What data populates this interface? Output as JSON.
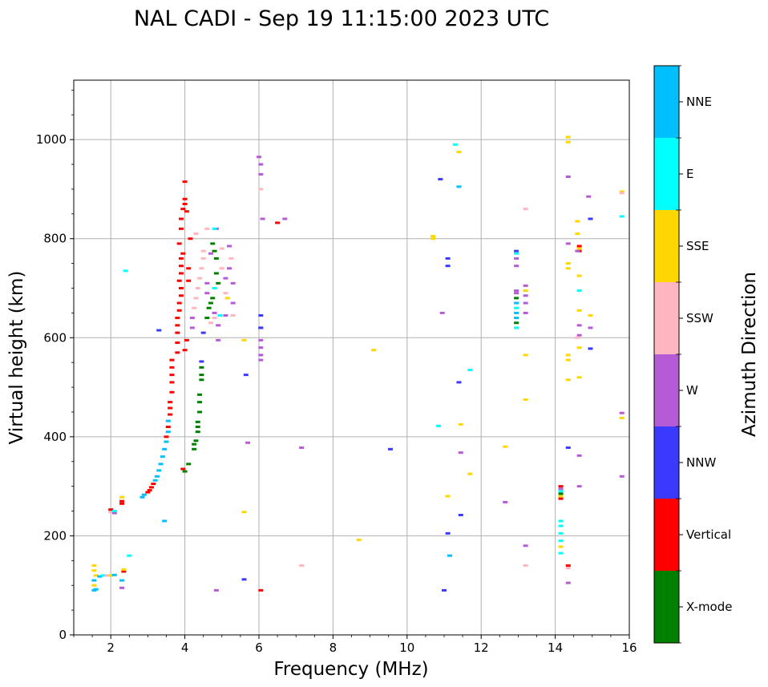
{
  "chart_data": {
    "type": "scatter",
    "title": "NAL CADI - Sep 19 11:15:00 2023 UTC",
    "xlabel": "Frequency (MHz)",
    "ylabel": "Virtual height (km)",
    "xlim": [
      1,
      16
    ],
    "ylim": [
      0,
      1120
    ],
    "xticks": [
      2,
      4,
      6,
      8,
      10,
      12,
      14,
      16
    ],
    "yticks": [
      0,
      200,
      400,
      600,
      800,
      1000
    ],
    "grid": true,
    "colorbar": {
      "title": "Azimuth Direction",
      "categories": [
        {
          "label": "X-mode",
          "color": "#008000"
        },
        {
          "label": "Vertical",
          "color": "#ff0000"
        },
        {
          "label": "NNW",
          "color": "#3a3aff"
        },
        {
          "label": "W",
          "color": "#b65bd6"
        },
        {
          "label": "SSW",
          "color": "#ffb6c1"
        },
        {
          "label": "SSE",
          "color": "#ffd700"
        },
        {
          "label": "E",
          "color": "#00ffff"
        },
        {
          "label": "NNE",
          "color": "#00bfff"
        }
      ]
    },
    "points": [
      [
        1.55,
        90,
        "NNE"
      ],
      [
        1.55,
        100,
        "SSE"
      ],
      [
        1.55,
        110,
        "NNE"
      ],
      [
        1.6,
        120,
        "SSE"
      ],
      [
        1.55,
        130,
        "SSE"
      ],
      [
        1.55,
        140,
        "SSE"
      ],
      [
        1.6,
        92,
        "NNE"
      ],
      [
        1.7,
        118,
        "NNE"
      ],
      [
        1.8,
        120,
        "E"
      ],
      [
        1.9,
        120,
        "SSW"
      ],
      [
        2.0,
        120,
        "SSE"
      ],
      [
        2.1,
        121,
        "NNE"
      ],
      [
        2.3,
        95,
        "W"
      ],
      [
        2.3,
        110,
        "NNE"
      ],
      [
        2.35,
        128,
        "Vertical"
      ],
      [
        2.35,
        132,
        "SSE"
      ],
      [
        2.5,
        160,
        "E"
      ],
      [
        2.0,
        248,
        "SSW"
      ],
      [
        2.0,
        253,
        "Vertical"
      ],
      [
        2.1,
        246,
        "W"
      ],
      [
        2.1,
        250,
        "E"
      ],
      [
        2.3,
        265,
        "Vertical"
      ],
      [
        2.3,
        270,
        "Vertical"
      ],
      [
        2.3,
        278,
        "SSE"
      ],
      [
        2.4,
        735,
        "E"
      ],
      [
        2.85,
        278,
        "NNE"
      ],
      [
        2.9,
        283,
        "NNE"
      ],
      [
        3.0,
        288,
        "Vertical"
      ],
      [
        3.05,
        292,
        "Vertical"
      ],
      [
        3.1,
        298,
        "Vertical"
      ],
      [
        3.15,
        305,
        "Vertical"
      ],
      [
        3.2,
        312,
        "NNE"
      ],
      [
        3.25,
        320,
        "NNE"
      ],
      [
        3.3,
        332,
        "NNE"
      ],
      [
        3.35,
        345,
        "NNE"
      ],
      [
        3.4,
        360,
        "NNE"
      ],
      [
        3.45,
        375,
        "NNE"
      ],
      [
        3.5,
        390,
        "NNE"
      ],
      [
        3.5,
        400,
        "Vertical"
      ],
      [
        3.55,
        410,
        "NNE"
      ],
      [
        3.55,
        420,
        "Vertical"
      ],
      [
        3.55,
        432,
        "NNE"
      ],
      [
        3.6,
        445,
        "Vertical"
      ],
      [
        3.6,
        458,
        "Vertical"
      ],
      [
        3.6,
        470,
        "Vertical"
      ],
      [
        3.65,
        490,
        "Vertical"
      ],
      [
        3.65,
        510,
        "Vertical"
      ],
      [
        3.65,
        525,
        "Vertical"
      ],
      [
        3.65,
        540,
        "Vertical"
      ],
      [
        3.65,
        555,
        "Vertical"
      ],
      [
        3.45,
        230,
        "NNE"
      ],
      [
        3.3,
        615,
        "NNW"
      ],
      [
        3.8,
        570,
        "Vertical"
      ],
      [
        3.8,
        590,
        "Vertical"
      ],
      [
        3.8,
        610,
        "Vertical"
      ],
      [
        3.8,
        625,
        "Vertical"
      ],
      [
        3.8,
        640,
        "Vertical"
      ],
      [
        3.85,
        655,
        "Vertical"
      ],
      [
        3.85,
        670,
        "Vertical"
      ],
      [
        3.9,
        685,
        "Vertical"
      ],
      [
        3.9,
        700,
        "Vertical"
      ],
      [
        3.85,
        715,
        "Vertical"
      ],
      [
        3.9,
        730,
        "Vertical"
      ],
      [
        3.9,
        745,
        "Vertical"
      ],
      [
        3.9,
        760,
        "Vertical"
      ],
      [
        3.95,
        770,
        "Vertical"
      ],
      [
        3.85,
        790,
        "Vertical"
      ],
      [
        3.9,
        820,
        "Vertical"
      ],
      [
        3.9,
        840,
        "Vertical"
      ],
      [
        3.95,
        860,
        "Vertical"
      ],
      [
        4.0,
        870,
        "Vertical"
      ],
      [
        4.0,
        915,
        "Vertical"
      ],
      [
        4.0,
        880,
        "Vertical"
      ],
      [
        4.05,
        855,
        "Vertical"
      ],
      [
        4.1,
        740,
        "Vertical"
      ],
      [
        4.1,
        715,
        "Vertical"
      ],
      [
        4.05,
        595,
        "Vertical"
      ],
      [
        4.0,
        575,
        "Vertical"
      ],
      [
        3.95,
        335,
        "Vertical"
      ],
      [
        4.0,
        330,
        "X-mode"
      ],
      [
        4.1,
        345,
        "X-mode"
      ],
      [
        4.25,
        375,
        "X-mode"
      ],
      [
        4.25,
        385,
        "X-mode"
      ],
      [
        4.3,
        392,
        "X-mode"
      ],
      [
        4.35,
        410,
        "X-mode"
      ],
      [
        4.35,
        420,
        "X-mode"
      ],
      [
        4.35,
        430,
        "X-mode"
      ],
      [
        4.4,
        450,
        "X-mode"
      ],
      [
        4.4,
        470,
        "X-mode"
      ],
      [
        4.4,
        485,
        "X-mode"
      ],
      [
        4.45,
        515,
        "X-mode"
      ],
      [
        4.45,
        525,
        "X-mode"
      ],
      [
        4.45,
        540,
        "X-mode"
      ],
      [
        4.45,
        552,
        "NNW"
      ],
      [
        4.5,
        610,
        "NNW"
      ],
      [
        4.2,
        620,
        "W"
      ],
      [
        4.2,
        640,
        "W"
      ],
      [
        4.25,
        660,
        "SSW"
      ],
      [
        4.3,
        680,
        "SSW"
      ],
      [
        4.35,
        700,
        "SSW"
      ],
      [
        4.4,
        720,
        "SSW"
      ],
      [
        4.45,
        740,
        "SSW"
      ],
      [
        4.5,
        760,
        "SSW"
      ],
      [
        4.5,
        775,
        "SSW"
      ],
      [
        4.6,
        690,
        "W"
      ],
      [
        4.6,
        710,
        "W"
      ],
      [
        4.65,
        660,
        "X-mode"
      ],
      [
        4.7,
        670,
        "X-mode"
      ],
      [
        4.75,
        680,
        "X-mode"
      ],
      [
        4.6,
        640,
        "X-mode"
      ],
      [
        4.8,
        700,
        "X-mode"
      ],
      [
        4.85,
        730,
        "X-mode"
      ],
      [
        4.85,
        760,
        "X-mode"
      ],
      [
        4.8,
        775,
        "X-mode"
      ],
      [
        4.75,
        790,
        "X-mode"
      ],
      [
        4.9,
        710,
        "X-mode"
      ],
      [
        4.8,
        640,
        "SSW"
      ],
      [
        4.8,
        650,
        "W"
      ],
      [
        4.7,
        630,
        "SSW"
      ],
      [
        4.7,
        770,
        "W"
      ],
      [
        4.9,
        595,
        "W"
      ],
      [
        4.85,
        820,
        "W"
      ],
      [
        4.6,
        820,
        "SSW"
      ],
      [
        4.3,
        810,
        "SSW"
      ],
      [
        4.15,
        800,
        "Vertical"
      ],
      [
        5.0,
        780,
        "SSW"
      ],
      [
        5.0,
        740,
        "SSW"
      ],
      [
        5.1,
        720,
        "W"
      ],
      [
        5.2,
        785,
        "W"
      ],
      [
        5.25,
        760,
        "SSW"
      ],
      [
        5.2,
        740,
        "W"
      ],
      [
        5.1,
        690,
        "SSW"
      ],
      [
        5.15,
        680,
        "SSE"
      ],
      [
        5.3,
        710,
        "W"
      ],
      [
        5.3,
        670,
        "W"
      ],
      [
        5.1,
        645,
        "W"
      ],
      [
        5.3,
        645,
        "SSW"
      ],
      [
        4.85,
        90,
        "W"
      ],
      [
        4.8,
        700,
        "E"
      ],
      [
        4.9,
        625,
        "W"
      ],
      [
        4.95,
        645,
        "E"
      ],
      [
        4.8,
        820,
        "E"
      ],
      [
        6.0,
        965,
        "W"
      ],
      [
        6.05,
        950,
        "W"
      ],
      [
        6.05,
        930,
        "W"
      ],
      [
        6.05,
        900,
        "SSW"
      ],
      [
        6.1,
        840,
        "W"
      ],
      [
        6.5,
        832,
        "Vertical"
      ],
      [
        6.7,
        840,
        "W"
      ],
      [
        6.05,
        620,
        "NNW"
      ],
      [
        6.05,
        645,
        "NNW"
      ],
      [
        6.05,
        595,
        "W"
      ],
      [
        6.05,
        580,
        "W"
      ],
      [
        6.05,
        565,
        "W"
      ],
      [
        6.05,
        555,
        "W"
      ],
      [
        6.05,
        620,
        "NNW"
      ],
      [
        5.65,
        525,
        "NNW"
      ],
      [
        5.7,
        388,
        "W"
      ],
      [
        5.6,
        595,
        "SSE"
      ],
      [
        5.6,
        248,
        "SSE"
      ],
      [
        5.6,
        112,
        "NNW"
      ],
      [
        6.05,
        90,
        "Vertical"
      ],
      [
        7.15,
        378,
        "W"
      ],
      [
        7.15,
        140,
        "SSW"
      ],
      [
        8.7,
        192,
        "SSE"
      ],
      [
        9.1,
        575,
        "SSE"
      ],
      [
        9.55,
        375,
        "NNW"
      ],
      [
        10.7,
        805,
        "SSE"
      ],
      [
        10.7,
        800,
        "SSE"
      ],
      [
        10.85,
        422,
        "E"
      ],
      [
        10.9,
        920,
        "NNW"
      ],
      [
        10.95,
        650,
        "W"
      ],
      [
        11.0,
        90,
        "NNW"
      ],
      [
        11.1,
        760,
        "NNW"
      ],
      [
        11.1,
        745,
        "NNW"
      ],
      [
        11.1,
        280,
        "SSE"
      ],
      [
        11.1,
        205,
        "NNW"
      ],
      [
        11.15,
        160,
        "NNE"
      ],
      [
        11.3,
        990,
        "E"
      ],
      [
        11.4,
        975,
        "SSE"
      ],
      [
        11.4,
        905,
        "NNE"
      ],
      [
        11.4,
        510,
        "NNW"
      ],
      [
        11.45,
        425,
        "SSE"
      ],
      [
        11.45,
        368,
        "W"
      ],
      [
        11.45,
        242,
        "NNW"
      ],
      [
        11.7,
        535,
        "E"
      ],
      [
        11.7,
        325,
        "SSE"
      ],
      [
        12.65,
        380,
        "SSE"
      ],
      [
        12.65,
        268,
        "W"
      ],
      [
        12.95,
        775,
        "NNW"
      ],
      [
        12.95,
        770,
        "E"
      ],
      [
        12.95,
        760,
        "W"
      ],
      [
        12.95,
        745,
        "W"
      ],
      [
        12.95,
        695,
        "W"
      ],
      [
        12.95,
        690,
        "W"
      ],
      [
        12.95,
        680,
        "X-mode"
      ],
      [
        12.95,
        670,
        "NNE"
      ],
      [
        12.95,
        660,
        "E"
      ],
      [
        12.95,
        650,
        "NNE"
      ],
      [
        12.95,
        640,
        "NNE"
      ],
      [
        12.95,
        630,
        "X-mode"
      ],
      [
        12.95,
        620,
        "E"
      ],
      [
        13.2,
        860,
        "SSW"
      ],
      [
        13.2,
        705,
        "W"
      ],
      [
        13.2,
        695,
        "SSE"
      ],
      [
        13.2,
        685,
        "W"
      ],
      [
        13.2,
        670,
        "W"
      ],
      [
        13.2,
        650,
        "W"
      ],
      [
        13.2,
        565,
        "SSE"
      ],
      [
        13.2,
        475,
        "SSE"
      ],
      [
        13.2,
        180,
        "W"
      ],
      [
        13.2,
        140,
        "SSW"
      ],
      [
        14.15,
        300,
        "Vertical"
      ],
      [
        14.15,
        295,
        "W"
      ],
      [
        14.15,
        290,
        "E"
      ],
      [
        14.15,
        285,
        "X-mode"
      ],
      [
        14.15,
        280,
        "SSE"
      ],
      [
        14.15,
        275,
        "Vertical"
      ],
      [
        14.15,
        230,
        "E"
      ],
      [
        14.15,
        220,
        "E"
      ],
      [
        14.15,
        205,
        "E"
      ],
      [
        14.15,
        190,
        "E"
      ],
      [
        14.15,
        178,
        "SSE"
      ],
      [
        14.15,
        165,
        "E"
      ],
      [
        14.35,
        1005,
        "SSE"
      ],
      [
        14.35,
        995,
        "SSE"
      ],
      [
        14.35,
        925,
        "W"
      ],
      [
        14.35,
        790,
        "W"
      ],
      [
        14.35,
        750,
        "SSE"
      ],
      [
        14.35,
        740,
        "SSE"
      ],
      [
        14.35,
        565,
        "SSE"
      ],
      [
        14.35,
        555,
        "SSE"
      ],
      [
        14.35,
        515,
        "SSE"
      ],
      [
        14.35,
        378,
        "NNW"
      ],
      [
        14.35,
        140,
        "Vertical"
      ],
      [
        14.35,
        135,
        "SSW"
      ],
      [
        14.35,
        105,
        "W"
      ],
      [
        14.6,
        835,
        "SSE"
      ],
      [
        14.6,
        810,
        "SSE"
      ],
      [
        14.65,
        785,
        "Vertical"
      ],
      [
        14.65,
        780,
        "SSE"
      ],
      [
        14.65,
        775,
        "Vertical"
      ],
      [
        14.6,
        775,
        "W"
      ],
      [
        14.65,
        725,
        "SSE"
      ],
      [
        14.65,
        695,
        "E"
      ],
      [
        14.65,
        655,
        "SSE"
      ],
      [
        14.65,
        625,
        "W"
      ],
      [
        14.65,
        605,
        "W"
      ],
      [
        14.6,
        600,
        "SSW"
      ],
      [
        14.65,
        580,
        "SSE"
      ],
      [
        14.65,
        520,
        "SSE"
      ],
      [
        14.65,
        362,
        "W"
      ],
      [
        14.65,
        300,
        "W"
      ],
      [
        14.9,
        885,
        "W"
      ],
      [
        14.95,
        840,
        "NNW"
      ],
      [
        14.95,
        645,
        "SSE"
      ],
      [
        14.95,
        620,
        "W"
      ],
      [
        14.95,
        578,
        "NNW"
      ],
      [
        15.8,
        895,
        "SSE"
      ],
      [
        15.8,
        892,
        "SSW"
      ],
      [
        15.8,
        845,
        "E"
      ],
      [
        15.8,
        448,
        "W"
      ],
      [
        15.8,
        438,
        "SSE"
      ],
      [
        15.8,
        320,
        "W"
      ]
    ]
  }
}
